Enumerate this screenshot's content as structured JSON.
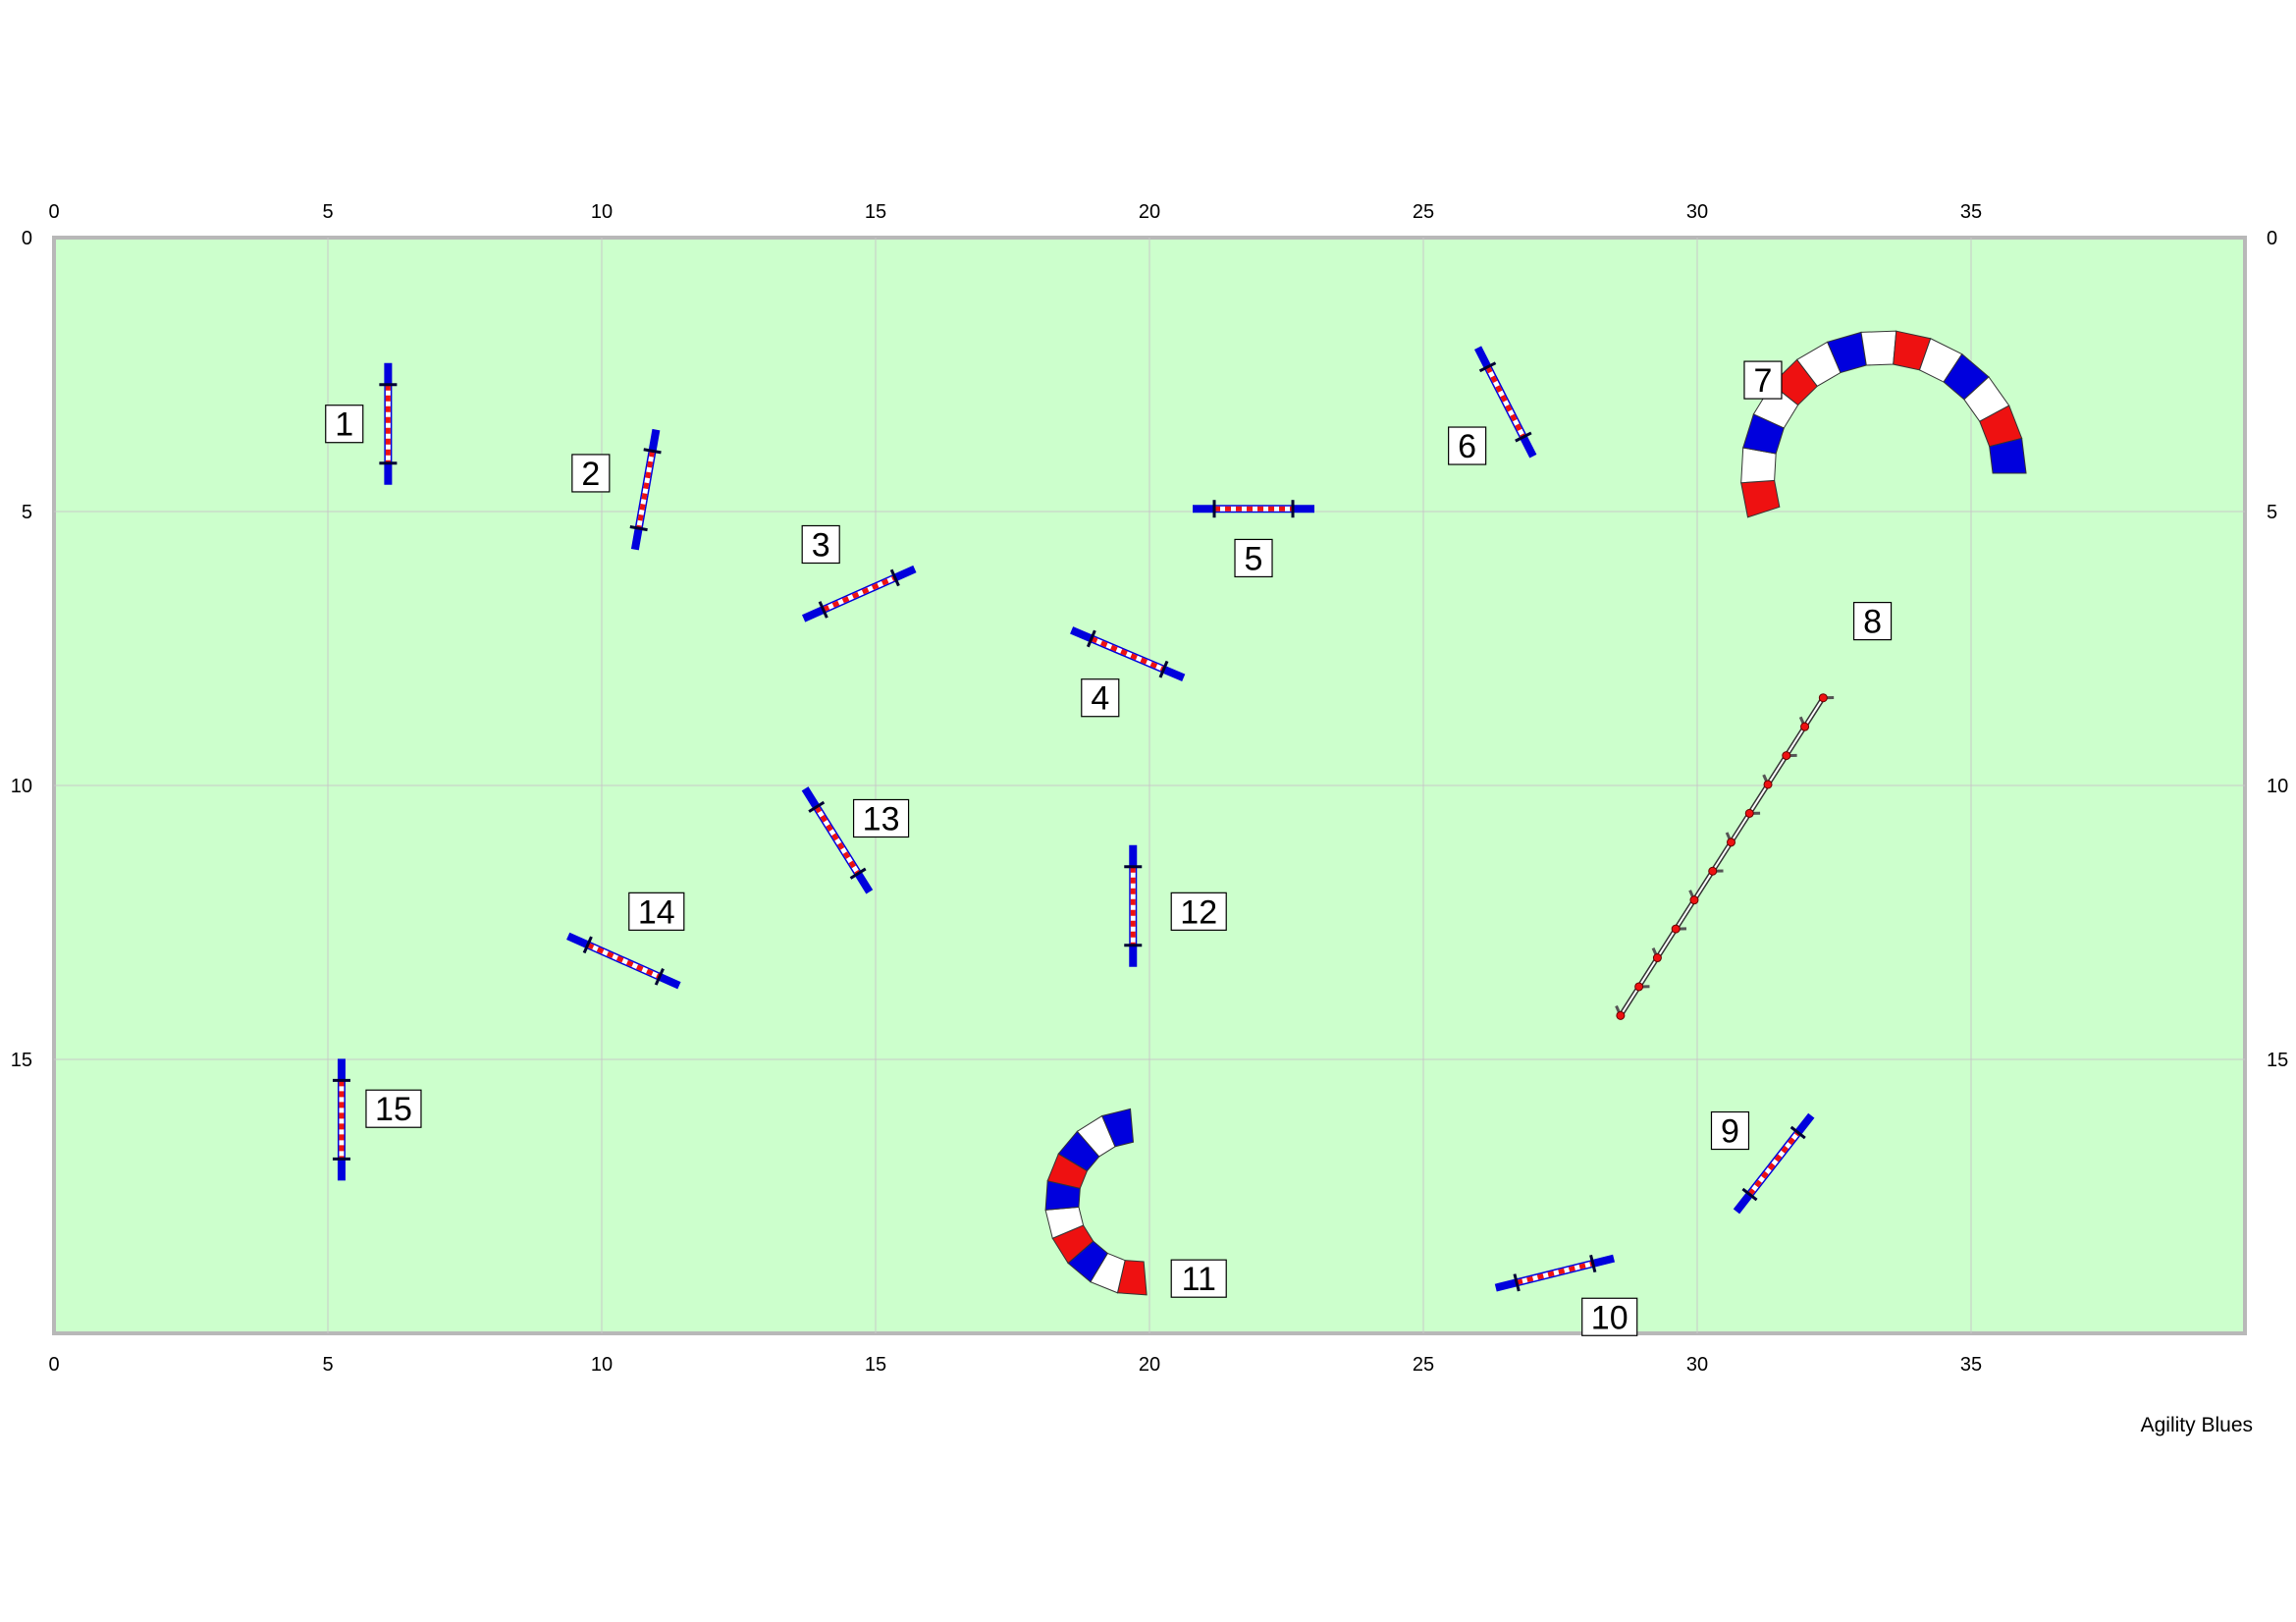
{
  "credit": "Agility Blues",
  "arena": {
    "width": 40,
    "height": 20,
    "background": "#ccffcc",
    "grid_color": "#c8c8c8",
    "border_color": "#b8b8b8"
  },
  "axes": {
    "top": [
      "0",
      "5",
      "10",
      "15",
      "20",
      "25",
      "30",
      "35"
    ],
    "bottom": [
      "0",
      "5",
      "10",
      "15",
      "20",
      "25",
      "30",
      "35"
    ],
    "left": [
      "0",
      "5",
      "10",
      "15"
    ],
    "right": [
      "0",
      "5",
      "10",
      "15"
    ]
  },
  "colors": {
    "blue": "#0000dd",
    "red": "#ee1111",
    "white": "#ffffff"
  },
  "obstacles": [
    {
      "number": "1",
      "type": "jump",
      "x": 6.1,
      "y": 3.4,
      "angle": 90,
      "label_at": [
        5.3,
        3.4
      ]
    },
    {
      "number": "2",
      "type": "jump",
      "x": 10.8,
      "y": 4.6,
      "angle": 100,
      "label_at": [
        9.8,
        4.3
      ]
    },
    {
      "number": "3",
      "type": "jump",
      "x": 14.7,
      "y": 6.5,
      "angle": -24,
      "label_at": [
        14.0,
        5.6
      ]
    },
    {
      "number": "4",
      "type": "jump",
      "x": 19.6,
      "y": 7.6,
      "angle": 23,
      "label_at": [
        19.1,
        8.4
      ]
    },
    {
      "number": "5",
      "type": "jump",
      "x": 21.9,
      "y": 4.95,
      "angle": 0,
      "label_at": [
        21.9,
        5.85
      ]
    },
    {
      "number": "6",
      "type": "jump",
      "x": 26.5,
      "y": 3.0,
      "angle": 63,
      "label_at": [
        25.8,
        3.8
      ]
    },
    {
      "number": "7",
      "type": "tunnel",
      "cx": 33.4,
      "cy": 4.3,
      "radius": 2.3,
      "start": 198,
      "end": 0,
      "segments": 14,
      "pattern": [
        "red",
        "white",
        "blue",
        "white",
        "red",
        "white",
        "blue",
        "white",
        "red",
        "white",
        "blue",
        "white",
        "red",
        "blue"
      ],
      "label_at": [
        31.2,
        2.6
      ]
    },
    {
      "number": "8",
      "type": "weave",
      "x1": 28.6,
      "y1": 14.2,
      "x2": 32.3,
      "y2": 8.4,
      "poles": 12,
      "label_at": [
        33.2,
        7.0
      ]
    },
    {
      "number": "9",
      "type": "jump",
      "x": 31.4,
      "y": 16.9,
      "angle": -52,
      "label_at": [
        30.6,
        16.3
      ]
    },
    {
      "number": "10",
      "type": "jump",
      "x": 27.4,
      "y": 18.9,
      "angle": -14,
      "label_at": [
        28.4,
        19.7
      ]
    },
    {
      "number": "11",
      "type": "tunnel",
      "cx": 19.8,
      "cy": 17.6,
      "radius": 1.4,
      "start": -85,
      "end": -265,
      "segments": 10,
      "pattern": [
        "red",
        "white",
        "blue",
        "red",
        "white",
        "blue",
        "red",
        "blue",
        "white",
        "blue"
      ],
      "label_at": [
        20.9,
        19.0
      ]
    },
    {
      "number": "12",
      "type": "jump",
      "x": 19.7,
      "y": 12.2,
      "angle": 90,
      "label_at": [
        20.9,
        12.3
      ]
    },
    {
      "number": "13",
      "type": "jump",
      "x": 14.3,
      "y": 11.0,
      "angle": 58,
      "label_at": [
        15.1,
        10.6
      ]
    },
    {
      "number": "14",
      "type": "jump",
      "x": 10.4,
      "y": 13.2,
      "angle": 24,
      "label_at": [
        11.0,
        12.3
      ]
    },
    {
      "number": "15",
      "type": "jump",
      "x": 5.25,
      "y": 16.1,
      "angle": 90,
      "label_at": [
        6.2,
        15.9
      ]
    }
  ]
}
